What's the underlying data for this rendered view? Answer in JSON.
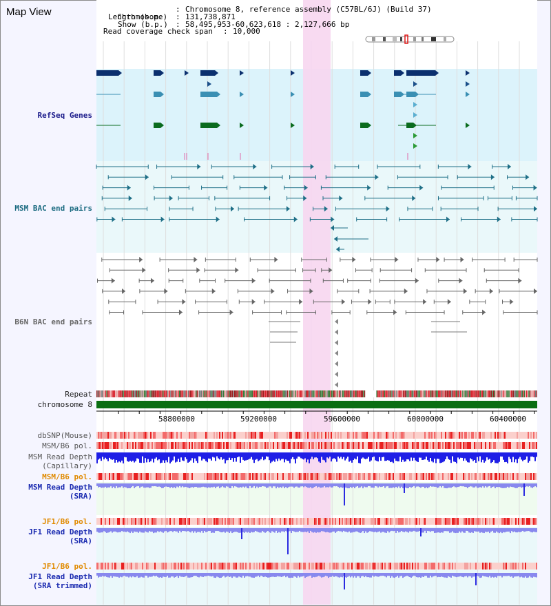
{
  "view_title": "Map View",
  "info": {
    "chromosome_label": "Chromosome",
    "chromosome_value": "Chromosome 8, reference assembly (C57BL/6J) (Build 37)",
    "length_label": "Length (b.p.)",
    "length_value": "131,738,871",
    "show_label": "Show (b.p.)",
    "show_value": "58,495,953-60,623,618 : 2,127,666 bp",
    "span_label": "Read coverage check span",
    "span_value": "10,000"
  },
  "tracks": {
    "refseq": "RefSeq Genes",
    "msm_bac": "MSM BAC end pairs",
    "b6n_bac": "B6N BAC end pairs",
    "repeat": "Repeat",
    "chromosome": "chromosome 8",
    "dbsnp": "dbSNP(Mouse)",
    "msm_b6_pol": "MSM/B6 pol.",
    "msm_read_depth_cap_1": "MSM Read Depth",
    "msm_read_depth_cap_2": "(Capillary)",
    "msm_b6_pol_2": "MSM/B6 pol.",
    "msm_read_depth_sra_1": "MSM Read Depth",
    "msm_read_depth_sra_2": "(SRA)",
    "jf1_b6_pol": "JF1/B6 pol.",
    "jf1_read_depth_1": "JF1 Read Depth",
    "jf1_read_depth_2": "(SRA)",
    "jf1_b6_pol_2": "JF1/B6 pol.",
    "jf1_trim_1": "JF1 Read Depth",
    "jf1_trim_2": "(SRA trimmed)"
  },
  "axis_ticks": [
    "58800000",
    "59200000",
    "59600000",
    "60000000",
    "60400000"
  ],
  "colors": {
    "refseq_bg": "#dcf3fb",
    "msm_bg": "#eaf8fa",
    "highlight": "#f7d6ef",
    "repeat_red": "#d8242e",
    "chromosome_green": "#0a6e12",
    "snp_pink": "#f3a3a0",
    "depth_blue": "#1f1fe6",
    "depth_light": "#8888ee"
  }
}
